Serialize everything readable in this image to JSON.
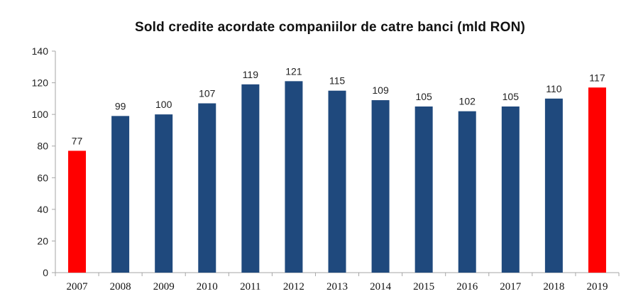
{
  "chart_data": {
    "type": "bar",
    "title": "Sold credite acordate companiilor de catre banci (mld RON)",
    "xlabel": "",
    "ylabel": "",
    "categories": [
      "2007",
      "2008",
      "2009",
      "2010",
      "2011",
      "2012",
      "2013",
      "2014",
      "2015",
      "2016",
      "2017",
      "2018",
      "2019"
    ],
    "values": [
      77,
      99,
      100,
      107,
      119,
      121,
      115,
      109,
      105,
      102,
      105,
      110,
      117
    ],
    "data_labels": [
      "77",
      "99",
      "100",
      "107",
      "119",
      "121",
      "115",
      "109",
      "105",
      "102",
      "105",
      "110",
      "117"
    ],
    "ylim": [
      0,
      140
    ],
    "yticks": [
      "0",
      "20",
      "40",
      "60",
      "80",
      "100",
      "120",
      "140"
    ],
    "grid": false,
    "legend": "none",
    "colors": {
      "default_bar": "#1F497D",
      "highlight_bar": "#FF0000",
      "axis": "#A6A6A6"
    },
    "highlighted_categories": [
      "2007",
      "2019"
    ]
  }
}
